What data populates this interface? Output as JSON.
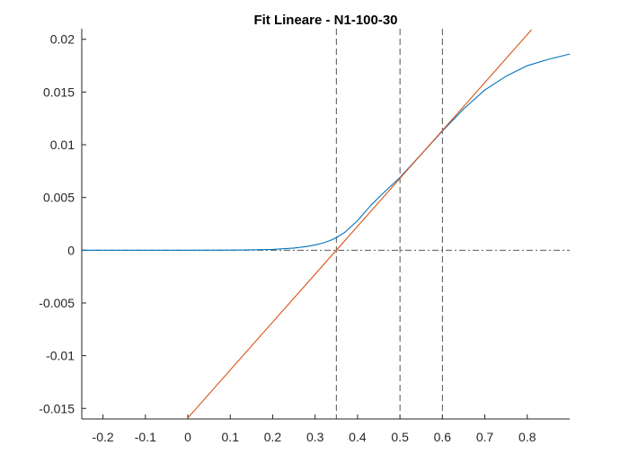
{
  "chart_data": {
    "type": "line",
    "title": "Fit Lineare - N1-100-30",
    "xlabel": "",
    "ylabel": "",
    "xlim": [
      -0.25,
      0.9
    ],
    "ylim": [
      -0.016,
      0.021
    ],
    "x_ticks": [
      -0.2,
      -0.1,
      0,
      0.1,
      0.2,
      0.3,
      0.4,
      0.5,
      0.6,
      0.7,
      0.8
    ],
    "x_tick_labels": [
      "-0.2",
      "-0.1",
      "0",
      "0.1",
      "0.2",
      "0.3",
      "0.4",
      "0.5",
      "0.6",
      "0.7",
      "0.8"
    ],
    "y_ticks": [
      -0.015,
      -0.01,
      -0.005,
      0,
      0.005,
      0.01,
      0.015,
      0.02
    ],
    "y_tick_labels": [
      "-0.015",
      "-0.01",
      "-0.005",
      "0",
      "0.005",
      "0.01",
      "0.015",
      "0.02"
    ],
    "grid": false,
    "series": [
      {
        "kind": "curve",
        "color": "#0072BD",
        "x": [
          -0.25,
          -0.1,
          0.0,
          0.1,
          0.15,
          0.2,
          0.25,
          0.28,
          0.3,
          0.32,
          0.34,
          0.35,
          0.37,
          0.4,
          0.43,
          0.46,
          0.5,
          0.55,
          0.6,
          0.65,
          0.7,
          0.75,
          0.8,
          0.85,
          0.9
        ],
        "y": [
          0,
          0,
          0,
          1e-05,
          3e-05,
          8e-05,
          0.0002,
          0.00035,
          0.0005,
          0.0007,
          0.001,
          0.0012,
          0.0017,
          0.0028,
          0.0042,
          0.0054,
          0.0069,
          0.0091,
          0.0113,
          0.0134,
          0.0152,
          0.0165,
          0.0175,
          0.0181,
          0.0186
        ]
      },
      {
        "kind": "line",
        "color": "#D95319",
        "x": [
          0.0,
          0.81
        ],
        "y": [
          -0.0159,
          0.0209
        ]
      }
    ],
    "vertical_lines": [
      {
        "x": 0.35,
        "color": "#404040",
        "style": "dashed"
      },
      {
        "x": 0.5,
        "color": "#404040",
        "style": "dashed"
      },
      {
        "x": 0.6,
        "color": "#404040",
        "style": "dashed"
      }
    ],
    "horizontal_lines": [
      {
        "y": 0,
        "color": "#404040",
        "style": "dashdot"
      }
    ]
  }
}
